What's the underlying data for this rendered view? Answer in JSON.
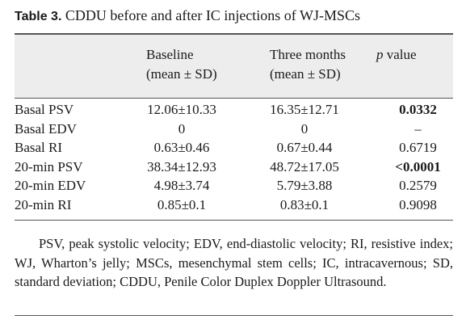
{
  "caption": {
    "label": "Table 3.",
    "text": "CDDU before and after IC injections of WJ-MSCs"
  },
  "header": {
    "col1_line1": "Baseline",
    "col1_line2": "(mean ± SD)",
    "col2_line1": "Three months",
    "col2_line2": "(mean ± SD)",
    "col3_italic": "p",
    "col3_rest": " value"
  },
  "rows": [
    {
      "label": "Basal PSV",
      "baseline": "12.06±10.33",
      "three_months": "16.35±12.71",
      "p_value": "0.0332",
      "p_bold": true
    },
    {
      "label": "Basal EDV",
      "baseline": "0",
      "three_months": "0",
      "p_value": "–",
      "p_bold": false
    },
    {
      "label": "Basal RI",
      "baseline": "0.63±0.46",
      "three_months": "0.67±0.44",
      "p_value": "0.6719",
      "p_bold": false
    },
    {
      "label": "20-min PSV",
      "baseline": "38.34±12.93",
      "three_months": "48.72±17.05",
      "p_value": "<0.0001",
      "p_bold": true
    },
    {
      "label": "20-min EDV",
      "baseline": "4.98±3.74",
      "three_months": "5.79±3.88",
      "p_value": "0.2579",
      "p_bold": false
    },
    {
      "label": "20-min RI",
      "baseline": "0.85±0.1",
      "three_months": "0.83±0.1",
      "p_value": "0.9098",
      "p_bold": false
    }
  ],
  "footnote": "PSV, peak systolic velocity; EDV, end-diastolic velocity; RI, resistive index; WJ, Wharton’s jelly; MSCs, mesenchymal stem cells; IC, intracavernous; SD, standard deviation; CDDU, Penile Color Duplex Doppler Ultrasound."
}
